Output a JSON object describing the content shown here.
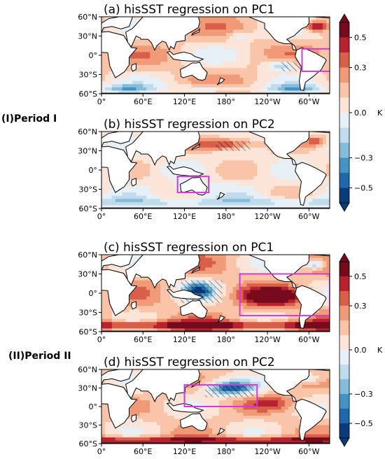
{
  "periods": [
    {
      "label": "(I)Period I"
    },
    {
      "label": "(II)Period II"
    }
  ],
  "panels": [
    {
      "title": "(a) hisSST regression on PC1"
    },
    {
      "title": "(b) hisSST regression on PC2"
    },
    {
      "title": "(c) hisSST regression on PC1"
    },
    {
      "title": "(d) hisSST regression on PC2"
    }
  ],
  "map_axes": {
    "lat_ticks": [
      "60°N",
      "30°N",
      "0°",
      "30°S",
      "60°S"
    ],
    "lon_ticks": [
      "0°",
      "60°E",
      "120°E",
      "180°",
      "120°W",
      "60°W"
    ]
  },
  "colorbar": {
    "unit": "K",
    "tick_labels": [
      "0.5",
      "0.3",
      "0.0",
      "−0.3",
      "−0.5"
    ],
    "levels": [
      -0.6,
      -0.5,
      -0.4,
      -0.3,
      -0.2,
      -0.1,
      0.0,
      0.1,
      0.2,
      0.3,
      0.4,
      0.5,
      0.6
    ],
    "colors": [
      "#0a3b7a",
      "#1f68ab",
      "#4393c3",
      "#84bcd9",
      "#c0dcec",
      "#e6f0f6",
      "#fbe5d8",
      "#f9c4a8",
      "#f09a78",
      "#d95f4a",
      "#b82230",
      "#750b1c"
    ]
  },
  "chart_data": [
    {
      "type": "heatmap",
      "title": "(a) hisSST regression on PC1",
      "xlim": [
        0,
        330
      ],
      "ylim": [
        -60,
        60
      ],
      "boxes": [
        {
          "lon": [
            290,
            360
          ],
          "lat": [
            -25,
            10
          ]
        }
      ]
    },
    {
      "type": "heatmap",
      "title": "(b) hisSST regression on PC2",
      "xlim": [
        0,
        330
      ],
      "ylim": [
        -60,
        60
      ],
      "boxes": [
        {
          "lon": [
            110,
            155
          ],
          "lat": [
            -35,
            -10
          ]
        }
      ]
    },
    {
      "type": "heatmap",
      "title": "(c) hisSST regression on PC1",
      "xlim": [
        0,
        330
      ],
      "ylim": [
        -60,
        60
      ],
      "boxes": [
        {
          "lon": [
            200,
            330
          ],
          "lat": [
            -35,
            30
          ]
        }
      ]
    },
    {
      "type": "heatmap",
      "title": "(d) hisSST regression on PC2",
      "xlim": [
        0,
        330
      ],
      "ylim": [
        -60,
        60
      ],
      "boxes": [
        {
          "lon": [
            120,
            225
          ],
          "lat": [
            0,
            35
          ]
        }
      ]
    }
  ]
}
